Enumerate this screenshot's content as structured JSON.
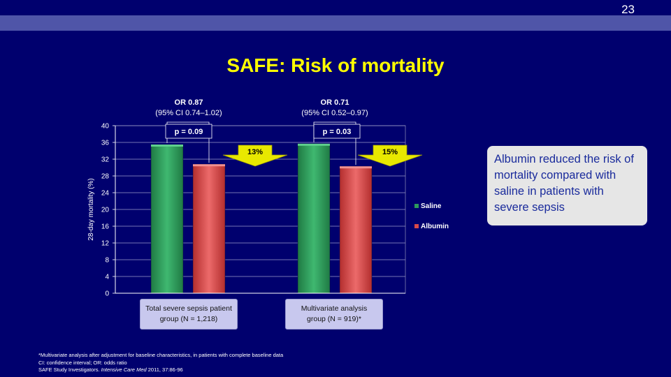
{
  "slide_number": "23",
  "title": "SAFE: Risk of mortality",
  "colors": {
    "saline": "#2e9a5c",
    "albumin": "#d94a4a",
    "accent": "#ffff00",
    "background": "#00006e"
  },
  "chart_data": {
    "type": "bar",
    "ylabel": "28-day mortality (%)",
    "ylim": [
      0,
      40
    ],
    "yticks": [
      0,
      4,
      8,
      12,
      16,
      20,
      24,
      28,
      32,
      36,
      40
    ],
    "categories": [
      "Total severe sepsis patient group (N = 1,218)",
      "Multivariate analysis group (N = 919)*"
    ],
    "series": [
      {
        "name": "Saline",
        "values": [
          35.5,
          35.7
        ]
      },
      {
        "name": "Albumin",
        "values": [
          30.8,
          30.3
        ]
      }
    ],
    "legend_position": "right",
    "annotations": [
      {
        "or_label": "OR 0.87",
        "ci_label": "(95% CI 0.74–1.02)",
        "p_label": "p = 0.09",
        "reduction_label": "13%"
      },
      {
        "or_label": "OR 0.71",
        "ci_label": "(95% CI 0.52–0.97)",
        "p_label": "p = 0.03",
        "reduction_label": "15%"
      }
    ]
  },
  "category_boxes": [
    {
      "line1": "Total severe sepsis patient",
      "line2": "group (N = 1,218)"
    },
    {
      "line1": "Multivariate analysis",
      "line2": "group (N = 919)*"
    }
  ],
  "callout": "Albumin reduced the risk of mortality compared with saline in patients with severe sepsis",
  "footnotes": {
    "line1": "*Multivariate analysis after adjustment for baseline characteristics, in patients with complete baseline data",
    "line2": "CI: confidence interval; OR: odds ratio",
    "line3_prefix": "SAFE Study Investigators. ",
    "line3_journal": "Intensive Care Med",
    "line3_suffix": " 2011, 37:86-96"
  }
}
